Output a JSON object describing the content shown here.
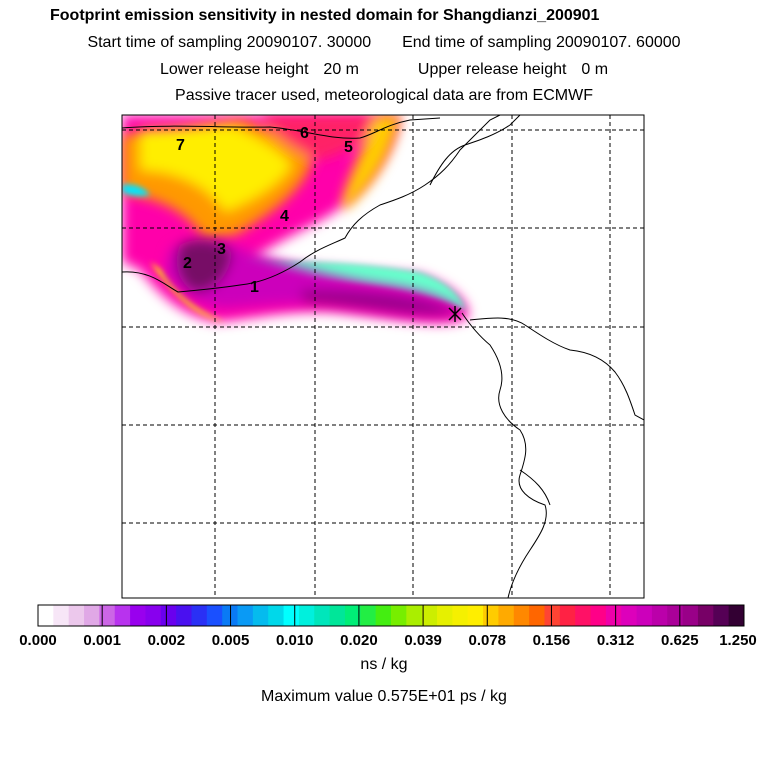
{
  "header": {
    "title": "Footprint emission sensitivity in nested domain for Shangdianzi_200901",
    "start_label": "Start time of sampling",
    "start_value": "20090107. 30000",
    "end_label": "End time of sampling",
    "end_value": "20090107. 60000",
    "lower_label": "Lower release height",
    "lower_value": "20 m",
    "upper_label": "Upper release height",
    "upper_value": "0 m",
    "note": "Passive tracer used, meteorological data are from ECMWF"
  },
  "plume_labels": [
    "1",
    "2",
    "3",
    "4",
    "5",
    "6",
    "7"
  ],
  "colorbar": {
    "ticks": [
      "0.000",
      "0.001",
      "0.002",
      "0.005",
      "0.010",
      "0.020",
      "0.039",
      "0.078",
      "0.156",
      "0.312",
      "0.625",
      "1.250"
    ],
    "colors": [
      "#ffffff",
      "#f7e6f7",
      "#ecc8ec",
      "#e0a8e6",
      "#cc66e6",
      "#b833ee",
      "#9900ee",
      "#8800ee",
      "#6a00ee",
      "#4a10f0",
      "#2a30f5",
      "#1a50ff",
      "#0a7af5",
      "#0a9af5",
      "#05bbee",
      "#00d8ea",
      "#00ffff",
      "#00f0dd",
      "#00e6bb",
      "#00e699",
      "#00ee77",
      "#22ee44",
      "#44ee11",
      "#77ee00",
      "#aaee00",
      "#ccee00",
      "#e6f000",
      "#f5f000",
      "#ffee00",
      "#ffcc00",
      "#ffaa00",
      "#ff8800",
      "#ff6600",
      "#ff4433",
      "#ff2244",
      "#ff1166",
      "#ff0088",
      "#ee00aa",
      "#dd00bb",
      "#cc00bb",
      "#bb00aa",
      "#aa0099",
      "#990088",
      "#770066",
      "#550055",
      "#330033"
    ]
  },
  "unit": "ns / kg",
  "maximum": "Maximum value  0.575E+01 ps / kg"
}
